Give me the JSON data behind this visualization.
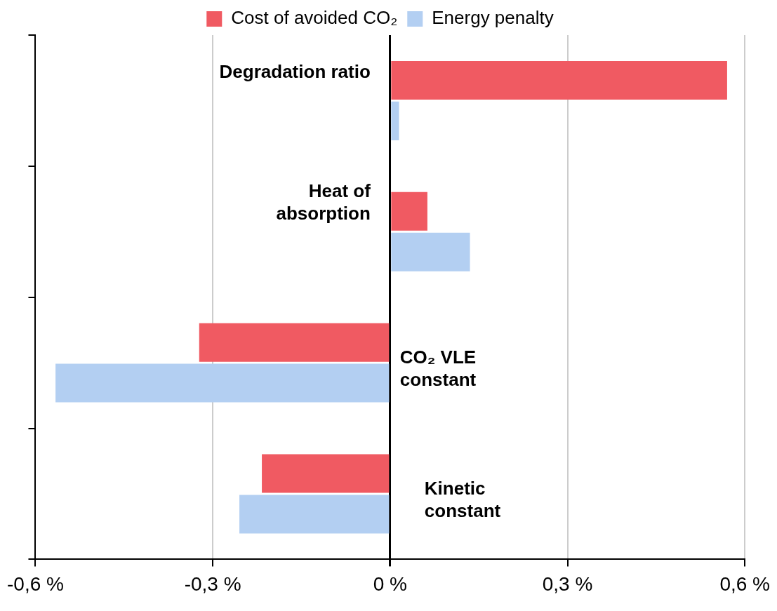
{
  "chart_data": {
    "type": "bar",
    "orientation": "horizontal",
    "categories": [
      "Degradation ratio",
      "Heat of absorption",
      "CO₂ VLE constant",
      "Kinetic constant"
    ],
    "series": [
      {
        "name": "Cost of avoided CO₂",
        "color": "#f05a62",
        "values": [
          0.57,
          0.063,
          -0.323,
          -0.217
        ]
      },
      {
        "name": "Energy penalty",
        "color": "#b3cff2",
        "values": [
          0.015,
          0.135,
          -0.566,
          -0.255
        ]
      }
    ],
    "xlim": [
      -0.6,
      0.6
    ],
    "xticks": [
      {
        "value": -0.6,
        "label": "-0,6 %"
      },
      {
        "value": -0.3,
        "label": "-0,3 %"
      },
      {
        "value": 0,
        "label": "0 %"
      },
      {
        "value": 0.3,
        "label": "0,3 %"
      },
      {
        "value": 0.6,
        "label": "0,6 %"
      }
    ],
    "grid": "x",
    "legend": "top"
  }
}
